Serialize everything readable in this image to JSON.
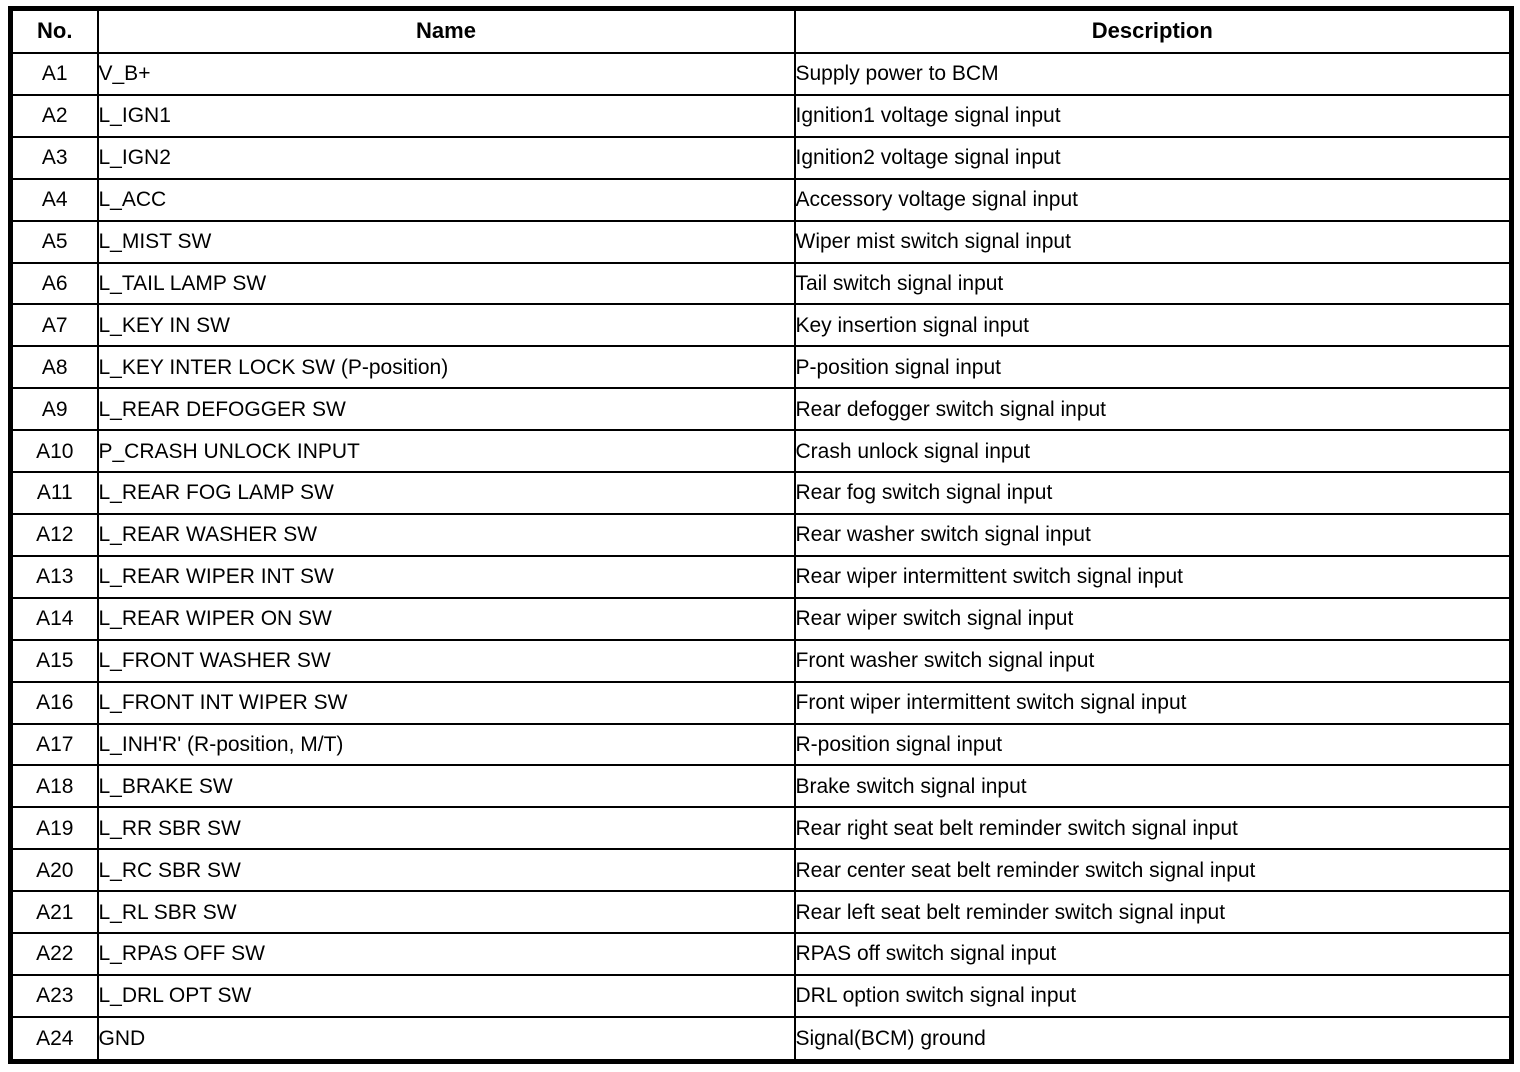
{
  "table": {
    "columns": [
      "No.",
      "Name",
      "Description"
    ],
    "rows": [
      {
        "no": "A1",
        "name": "V_B+",
        "description": "Supply power to BCM"
      },
      {
        "no": "A2",
        "name": "L_IGN1",
        "description": "Ignition1 voltage signal input"
      },
      {
        "no": "A3",
        "name": "L_IGN2",
        "description": "Ignition2 voltage signal input"
      },
      {
        "no": "A4",
        "name": "L_ACC",
        "description": "Accessory voltage signal input"
      },
      {
        "no": "A5",
        "name": "L_MIST SW",
        "description": "Wiper mist switch signal input"
      },
      {
        "no": "A6",
        "name": "L_TAIL LAMP SW",
        "description": "Tail switch signal input"
      },
      {
        "no": "A7",
        "name": "L_KEY IN SW",
        "description": "Key insertion signal input"
      },
      {
        "no": "A8",
        "name": "L_KEY INTER LOCK SW (P-position)",
        "description": "P-position signal input"
      },
      {
        "no": "A9",
        "name": "L_REAR DEFOGGER SW",
        "description": "Rear defogger switch signal input"
      },
      {
        "no": "A10",
        "name": "P_CRASH UNLOCK INPUT",
        "description": "Crash unlock signal input"
      },
      {
        "no": "A11",
        "name": "L_REAR FOG LAMP SW",
        "description": "Rear fog switch signal input"
      },
      {
        "no": "A12",
        "name": "L_REAR WASHER SW",
        "description": "Rear washer switch signal input"
      },
      {
        "no": "A13",
        "name": "L_REAR WIPER INT SW",
        "description": "Rear wiper intermittent switch signal input"
      },
      {
        "no": "A14",
        "name": "L_REAR WIPER ON SW",
        "description": "Rear wiper switch signal input"
      },
      {
        "no": "A15",
        "name": "L_FRONT WASHER SW",
        "description": "Front washer switch signal input"
      },
      {
        "no": "A16",
        "name": "L_FRONT INT WIPER SW",
        "description": "Front wiper intermittent switch signal input"
      },
      {
        "no": "A17",
        "name": "L_INH'R' (R-position, M/T)",
        "description": "R-position signal input"
      },
      {
        "no": "A18",
        "name": "L_BRAKE SW",
        "description": "Brake switch signal input"
      },
      {
        "no": "A19",
        "name": "L_RR SBR SW",
        "description": "Rear right seat belt reminder switch signal input"
      },
      {
        "no": "A20",
        "name": "L_RC SBR SW",
        "description": "Rear center seat belt reminder switch signal input"
      },
      {
        "no": "A21",
        "name": "L_RL SBR SW",
        "description": "Rear left seat belt reminder switch signal input"
      },
      {
        "no": "A22",
        "name": "L_RPAS OFF SW",
        "description": "RPAS off switch signal input"
      },
      {
        "no": "A23",
        "name": "L_DRL OPT SW",
        "description": "DRL option switch signal input"
      },
      {
        "no": "A24",
        "name": "GND",
        "description": "Signal(BCM) ground"
      }
    ]
  }
}
